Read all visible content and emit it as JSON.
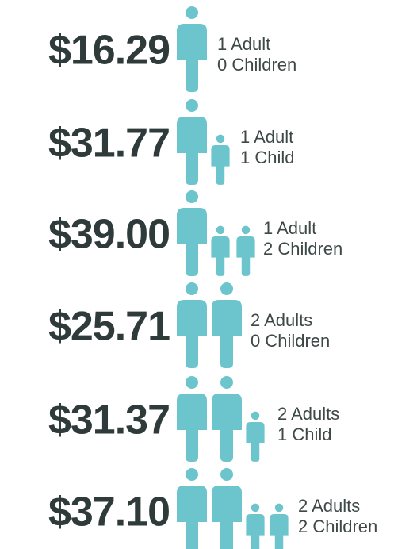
{
  "rows": [
    {
      "amount": "$16.29",
      "adults": "1 Adult",
      "children": "0 Children"
    },
    {
      "amount": "$31.77",
      "adults": "1 Adult",
      "children": "1 Child"
    },
    {
      "amount": "$39.00",
      "adults": "1 Adult",
      "children": "2 Children"
    },
    {
      "amount": "$25.71",
      "adults": "2 Adults",
      "children": "0 Children"
    },
    {
      "amount": "$31.37",
      "adults": "2 Adults",
      "children": "1 Child"
    },
    {
      "amount": "$37.10",
      "adults": "2 Adults",
      "children": "2 Children"
    }
  ]
}
